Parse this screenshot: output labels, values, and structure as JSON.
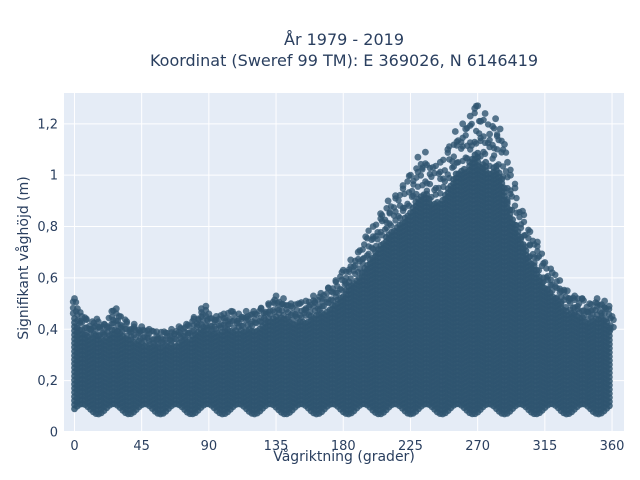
{
  "chart_data": {
    "type": "scatter",
    "title_lines": [
      "År 1979 - 2019",
      "Koordinat (Sweref 99 TM): E 369026, N 6146419"
    ],
    "xlabel": "Vågriktning (grader)",
    "ylabel": "Signifikant våghöjd (m)",
    "xlim": [
      -7,
      368
    ],
    "ylim": [
      0,
      1.32
    ],
    "x_ticks": [
      0,
      45,
      90,
      135,
      180,
      225,
      270,
      315,
      360
    ],
    "x_tick_labels": [
      "0",
      "45",
      "90",
      "135",
      "180",
      "225",
      "270",
      "315",
      "360"
    ],
    "y_ticks": [
      0,
      0.2,
      0.4,
      0.6,
      0.8,
      1.0,
      1.2
    ],
    "y_tick_labels": [
      "0",
      "0,2",
      "0,4",
      "0,6",
      "0,8",
      "1",
      "1,2"
    ],
    "grid": true,
    "background": "#e5ecf6",
    "marker_color": "#2f5570",
    "series": [
      {
        "x": [
          0,
          2,
          5,
          8,
          12,
          15,
          20,
          25,
          28,
          30,
          35,
          40,
          45,
          50,
          55,
          60,
          65,
          70,
          75,
          80,
          85,
          88,
          90,
          95,
          100,
          105,
          110,
          115,
          120,
          125,
          130,
          135,
          140,
          145,
          150,
          155,
          160,
          165,
          170,
          175,
          180,
          185,
          190,
          195,
          200,
          205,
          210,
          215,
          220,
          225,
          230,
          235,
          240,
          245,
          250,
          255,
          260,
          262,
          265,
          268,
          270,
          272,
          275,
          278,
          280,
          282,
          285,
          288,
          290,
          292,
          295,
          300,
          305,
          310,
          315,
          320,
          325,
          330,
          335,
          340,
          345,
          350,
          355,
          358,
          360
        ],
        "y": [
          0.52,
          0.48,
          0.45,
          0.44,
          0.43,
          0.44,
          0.42,
          0.47,
          0.48,
          0.45,
          0.43,
          0.42,
          0.41,
          0.4,
          0.39,
          0.39,
          0.4,
          0.41,
          0.42,
          0.44,
          0.48,
          0.49,
          0.46,
          0.45,
          0.46,
          0.47,
          0.46,
          0.47,
          0.47,
          0.48,
          0.5,
          0.53,
          0.52,
          0.5,
          0.5,
          0.51,
          0.53,
          0.54,
          0.56,
          0.59,
          0.63,
          0.67,
          0.7,
          0.76,
          0.8,
          0.85,
          0.9,
          0.92,
          0.96,
          1.0,
          1.07,
          1.09,
          1.03,
          1.05,
          1.1,
          1.17,
          1.2,
          1.18,
          1.23,
          1.26,
          1.27,
          1.21,
          1.24,
          1.16,
          1.19,
          1.22,
          1.18,
          1.12,
          1.05,
          1.0,
          0.95,
          0.86,
          0.78,
          0.74,
          0.66,
          0.62,
          0.59,
          0.55,
          0.53,
          0.52,
          0.5,
          0.52,
          0.51,
          0.49,
          0.45
        ]
      }
    ]
  }
}
